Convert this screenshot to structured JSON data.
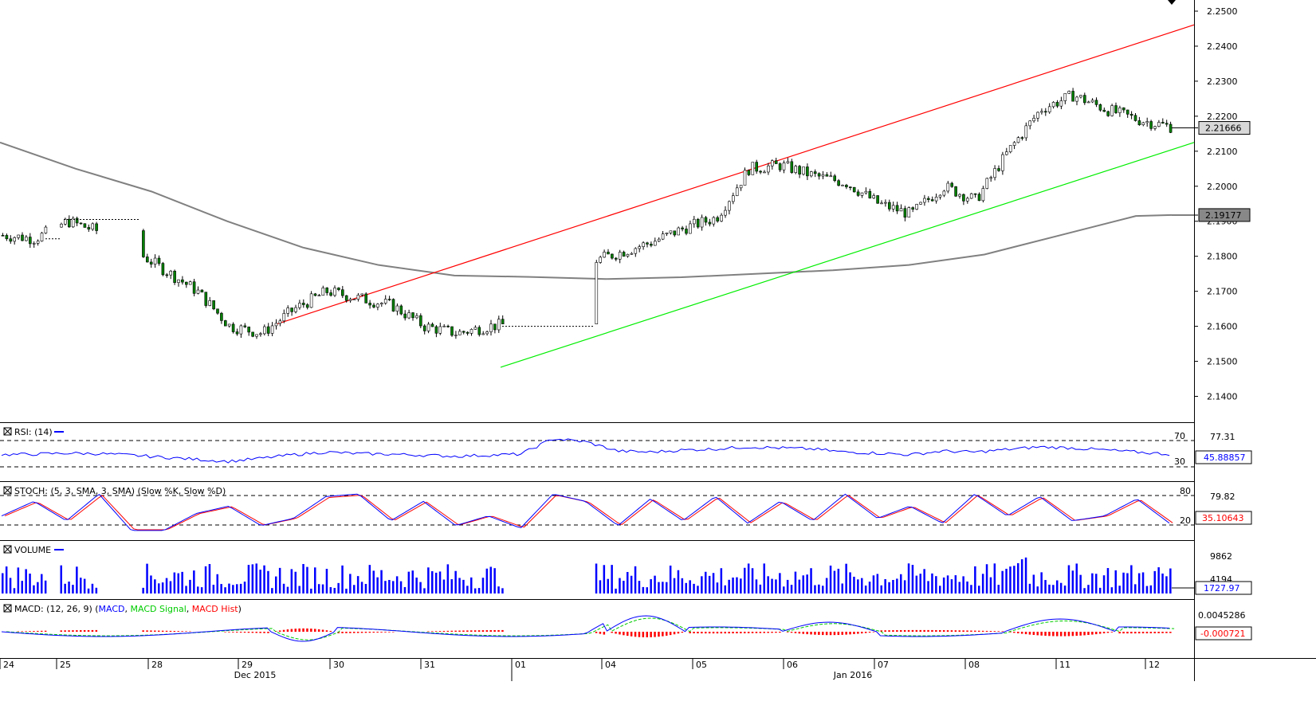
{
  "chart_data": {
    "type": "candlestick",
    "price_axis": {
      "ticks": [
        "2.2500",
        "2.2400",
        "2.2300",
        "2.2200",
        "2.2100",
        "2.2000",
        "2.1900",
        "2.1800",
        "2.1700",
        "2.1600",
        "2.1500",
        "2.1400"
      ],
      "ylim": [
        2.1335,
        2.2525
      ],
      "current_price": "2.21666",
      "ma_value": "2.19177",
      "ma_value_num": 2.19177,
      "current_price_num": 2.21666
    },
    "trendlines": [
      {
        "color": "#ff0000",
        "x": [
          0,
          24
        ],
        "y": [
          2.1605,
          2.246
        ]
      },
      {
        "color": "#00cc00",
        "x": [
          0,
          24
        ],
        "y": [
          2.1483,
          2.2128
        ]
      }
    ],
    "moving_average": [
      [
        0,
        2.2125
      ],
      [
        1,
        2.205
      ],
      [
        2,
        2.1985
      ],
      [
        3,
        2.19
      ],
      [
        4,
        2.1825
      ],
      [
        5,
        2.1775
      ],
      [
        6,
        2.1745
      ],
      [
        7,
        2.1741
      ],
      [
        8,
        2.1735
      ],
      [
        9,
        2.174
      ],
      [
        10,
        2.175
      ],
      [
        11,
        2.176
      ],
      [
        12,
        2.1775
      ],
      [
        13,
        2.1805
      ],
      [
        14,
        2.186
      ],
      [
        15,
        2.1915
      ],
      [
        16,
        2.1918
      ]
    ],
    "closes": [
      2.186,
      2.185,
      2.19,
      2.187,
      2.182,
      2.176,
      2.17,
      2.16,
      2.158,
      2.165,
      2.17,
      2.168,
      2.166,
      2.16,
      2.158,
      2.16,
      2.161,
      2.172,
      2.178,
      2.181,
      2.184,
      2.188,
      2.191,
      2.205,
      2.206,
      2.203,
      2.201,
      2.195,
      2.192,
      2.2,
      2.196,
      2.21,
      2.222,
      2.226,
      2.222,
      2.219,
      2.217
    ],
    "time_axis": {
      "day_labels": [
        "24",
        "25",
        "28",
        "29",
        "30",
        "31",
        "01",
        "04",
        "05",
        "06",
        "07",
        "08",
        "11",
        "12"
      ],
      "month_labels": [
        "Dec 2015",
        "Jan 2016"
      ]
    },
    "rsi": {
      "title": "RSI: (14)",
      "levels": [
        "70",
        "30"
      ],
      "value_label": "77.31",
      "current": "45.88857",
      "color": "#0000ff",
      "values": [
        45,
        46,
        48,
        47,
        44,
        40,
        36,
        32,
        38,
        45,
        50,
        47,
        46,
        44,
        42,
        44,
        46,
        76,
        70,
        52,
        50,
        54,
        56,
        60,
        58,
        56,
        50,
        48,
        45,
        52,
        50,
        55,
        60,
        58,
        54,
        50,
        46
      ]
    },
    "stoch": {
      "title": "STOCH: (5, 3, SMA, 3, SMA) (Slow %K, Slow %D)",
      "levels": [
        "80",
        "20"
      ],
      "value_label": "79.82",
      "current": "35.10643",
      "k_color": "#0000ff",
      "d_color": "#ff0000",
      "k_values": [
        40,
        70,
        30,
        85,
        10,
        10,
        45,
        60,
        20,
        35,
        80,
        85,
        30,
        70,
        20,
        40,
        15,
        85,
        70,
        20,
        75,
        30,
        80,
        25,
        70,
        30,
        85,
        35,
        60,
        25,
        85,
        40,
        80,
        30,
        40,
        75,
        25
      ]
    },
    "volume": {
      "title": "VOLUME",
      "levels": [
        "9862",
        "4194"
      ],
      "current": "1727.97",
      "color": "#0000ff"
    },
    "macd": {
      "title_prefix": "MACD: (12, 26, 9) (",
      "series_macd": "MACD",
      "series_signal": "MACD Signal",
      "series_hist": "MACD Hist",
      "macd_color": "#0000ff",
      "signal_color": "#00cc00",
      "hist_color": "#ff0000",
      "value_label": "0.0045286",
      "current": "-0.000721"
    }
  }
}
